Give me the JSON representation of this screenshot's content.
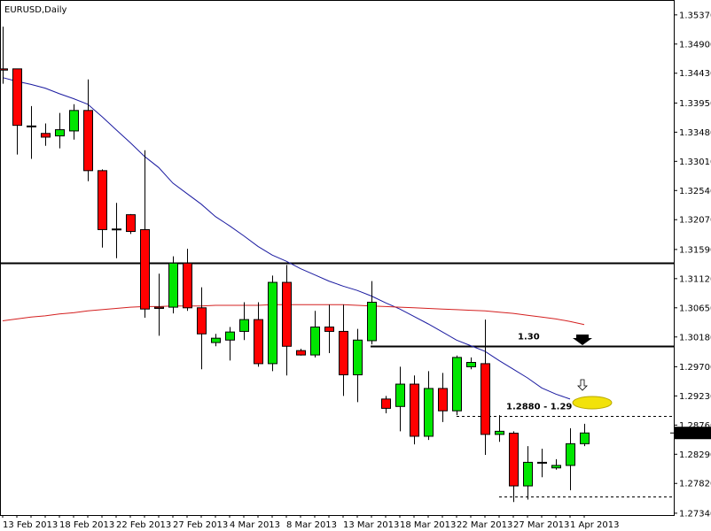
{
  "chart_data": {
    "type": "candlestick",
    "title": "EURUSD,Daily",
    "categories": [
      "13 Feb 2013",
      null,
      null,
      null,
      "18 Feb 2013",
      null,
      null,
      null,
      "22 Feb 2013",
      null,
      null,
      null,
      "27 Feb 2013",
      null,
      null,
      null,
      "4 Mar 2013",
      null,
      null,
      null,
      "8 Mar 2013",
      null,
      null,
      null,
      "13 Mar 2013",
      null,
      null,
      null,
      "18 Mar 2013",
      null,
      null,
      null,
      "22 Mar 2013",
      null,
      null,
      null,
      "27 Mar 2013",
      null,
      null,
      null,
      "1 Apr 2013",
      null
    ],
    "open": [
      1.345,
      1.345,
      1.3358,
      1.3346,
      1.3342,
      1.335,
      1.3383,
      1.3286,
      1.3192,
      1.3215,
      1.3191,
      1.3066,
      1.3066,
      1.3137,
      1.3065,
      1.3009,
      1.3013,
      1.3027,
      1.3046,
      1.2975,
      1.3106,
      1.2996,
      1.2989,
      1.3034,
      1.3027,
      1.2957,
      1.3012,
      1.2918,
      1.2906,
      1.2942,
      1.2858,
      1.2935,
      1.2899,
      1.297,
      1.2975,
      1.2861,
      1.2863,
      1.2778,
      1.2816,
      1.2807,
      1.2811,
      1.2846
    ],
    "high": [
      1.3518,
      1.345,
      1.339,
      1.3362,
      1.3379,
      1.3393,
      1.3433,
      1.3288,
      1.3234,
      1.3216,
      1.3319,
      1.312,
      1.3148,
      1.316,
      1.3098,
      1.3023,
      1.3034,
      1.3074,
      1.3074,
      1.3117,
      1.3134,
      1.2999,
      1.306,
      1.307,
      1.307,
      1.3031,
      1.3108,
      1.2923,
      1.297,
      1.2956,
      1.2963,
      1.296,
      1.2988,
      1.2985,
      1.3046,
      1.2892,
      1.2866,
      1.2842,
      1.2838,
      1.2821,
      1.2871,
      1.2878
    ],
    "low": [
      1.3426,
      1.3312,
      1.3305,
      1.3326,
      1.3322,
      1.3336,
      1.3269,
      1.3162,
      1.3145,
      1.3184,
      1.3049,
      1.302,
      1.3056,
      1.306,
      1.2966,
      1.3003,
      1.298,
      1.3013,
      1.297,
      1.2963,
      1.2956,
      1.2988,
      1.2985,
      1.2992,
      1.2923,
      1.2913,
      1.3006,
      1.2895,
      1.2866,
      1.2845,
      1.2852,
      1.2881,
      1.2892,
      1.2966,
      1.2828,
      1.2849,
      1.2752,
      1.2756,
      1.2792,
      1.2804,
      1.2771,
      1.2842
    ],
    "close": [
      1.3448,
      1.3359,
      1.3357,
      1.334,
      1.3352,
      1.3383,
      1.3286,
      1.3191,
      1.3191,
      1.3188,
      1.3063,
      1.3064,
      1.3137,
      1.3065,
      1.3023,
      1.3016,
      1.3026,
      1.3046,
      1.2975,
      1.3106,
      1.3003,
      1.2989,
      1.3034,
      1.3027,
      1.2957,
      1.3013,
      1.3074,
      1.2903,
      1.2942,
      1.2858,
      1.2935,
      1.2899,
      1.2985,
      1.2977,
      1.2861,
      1.2866,
      1.2778,
      1.2816,
      1.2815,
      1.2811,
      1.2846,
      1.28633
    ],
    "up_color": "#00e600",
    "down_color": "#ff0000",
    "series": [
      {
        "color": "#1a1aa0",
        "values": [
          1.3436,
          1.343,
          1.3425,
          1.3419,
          1.341,
          1.3402,
          1.3393,
          1.3373,
          1.3352,
          1.3331,
          1.3309,
          1.3291,
          1.3266,
          1.3249,
          1.3232,
          1.3212,
          1.3197,
          1.3181,
          1.3164,
          1.315,
          1.314,
          1.3128,
          1.3118,
          1.3108,
          1.31,
          1.3093,
          1.3084,
          1.3073,
          1.3063,
          1.3051,
          1.3039,
          1.3026,
          1.3013,
          1.3004,
          1.2995,
          1.298,
          1.2966,
          1.2952,
          1.2936,
          1.2926,
          1.2918,
          null
        ]
      },
      {
        "color": "#d42020",
        "values": [
          1.3044,
          1.3047,
          1.305,
          1.3052,
          1.3055,
          1.3057,
          1.306,
          1.3062,
          1.3064,
          1.3066,
          1.3067,
          1.3067,
          1.3068,
          1.3068,
          1.3068,
          1.3069,
          1.3069,
          1.3069,
          1.3069,
          1.307,
          1.307,
          1.307,
          1.307,
          1.307,
          1.307,
          1.3069,
          1.3068,
          1.3067,
          1.3066,
          1.3065,
          1.3064,
          1.3063,
          1.3062,
          1.3061,
          1.306,
          1.3058,
          1.3056,
          1.3053,
          1.305,
          1.3047,
          1.3043,
          1.3038
        ]
      }
    ],
    "hlines": [
      {
        "value": 1.3138,
        "style": "solid"
      },
      {
        "value": 1.3003,
        "style": "solid",
        "label": "1.30"
      },
      {
        "value": 1.2891,
        "style": "dotted",
        "label": "1.2880 - 1.29"
      },
      {
        "value": 1.2761,
        "style": "dotted"
      }
    ],
    "current_price": 1.28633,
    "ylim": [
      1.2731,
      1.3561
    ],
    "yticks": [
      {
        "value": 1.3537,
        "label": "1.35370"
      },
      {
        "value": 1.349,
        "label": "1.34900"
      },
      {
        "value": 1.3443,
        "label": "1.34430"
      },
      {
        "value": 1.3395,
        "label": "1.33950"
      },
      {
        "value": 1.3348,
        "label": "1.33480"
      },
      {
        "value": 1.3301,
        "label": "1.33010"
      },
      {
        "value": 1.3254,
        "label": "1.32540"
      },
      {
        "value": 1.3207,
        "label": "1.32070"
      },
      {
        "value": 1.3159,
        "label": "1.31590"
      },
      {
        "value": 1.3112,
        "label": "1.31120"
      },
      {
        "value": 1.3065,
        "label": "1.30650"
      },
      {
        "value": 1.3018,
        "label": "1.30180"
      },
      {
        "value": 1.297,
        "label": "1.29700"
      },
      {
        "value": 1.2923,
        "label": "1.29230"
      },
      {
        "value": 1.2876,
        "label": "1.28760"
      },
      {
        "value": 1.2829,
        "label": "1.28290"
      },
      {
        "value": 1.2782,
        "label": "1.27820"
      },
      {
        "value": 1.2734,
        "label": "1.27340"
      }
    ]
  }
}
